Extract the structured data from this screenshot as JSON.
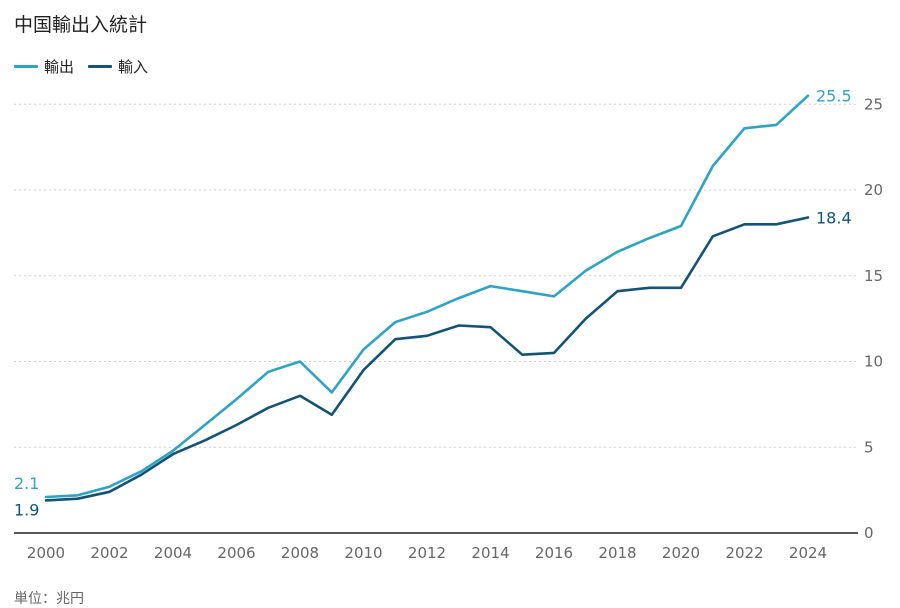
{
  "chart_data": {
    "type": "line",
    "title": "中国輸出入統計",
    "source_note": "単位：兆円",
    "x": [
      2000,
      2001,
      2002,
      2003,
      2004,
      2005,
      2006,
      2007,
      2008,
      2009,
      2010,
      2011,
      2012,
      2013,
      2014,
      2015,
      2016,
      2017,
      2018,
      2019,
      2020,
      2021,
      2022,
      2023,
      2024
    ],
    "x_ticks": [
      "2000",
      "2002",
      "2004",
      "2006",
      "2008",
      "2010",
      "2012",
      "2014",
      "2016",
      "2018",
      "2020",
      "2022",
      "2024"
    ],
    "y_ticks": [
      "0",
      "5",
      "10",
      "15",
      "20",
      "25"
    ],
    "ylim": [
      0,
      27
    ],
    "grid": true,
    "legend_position": "top-left",
    "series": [
      {
        "name": "輸出",
        "color": "#2ea3c6",
        "values": [
          2.1,
          2.2,
          2.7,
          3.6,
          4.8,
          6.3,
          7.8,
          9.4,
          10.0,
          8.2,
          10.7,
          12.3,
          12.9,
          13.7,
          14.4,
          14.1,
          13.8,
          15.3,
          16.4,
          17.2,
          17.9,
          21.4,
          23.6,
          23.8,
          25.5
        ],
        "start_label": "2.1",
        "end_label": "25.5"
      },
      {
        "name": "輸入",
        "color": "#135375",
        "values": [
          1.9,
          2.0,
          2.4,
          3.4,
          4.6,
          5.4,
          6.3,
          7.3,
          8.0,
          6.9,
          9.5,
          11.3,
          11.5,
          12.1,
          12.0,
          10.4,
          10.5,
          12.5,
          14.1,
          14.3,
          14.3,
          17.3,
          18.0,
          18.0,
          18.4
        ],
        "start_label": "1.9",
        "end_label": "18.4"
      }
    ]
  }
}
